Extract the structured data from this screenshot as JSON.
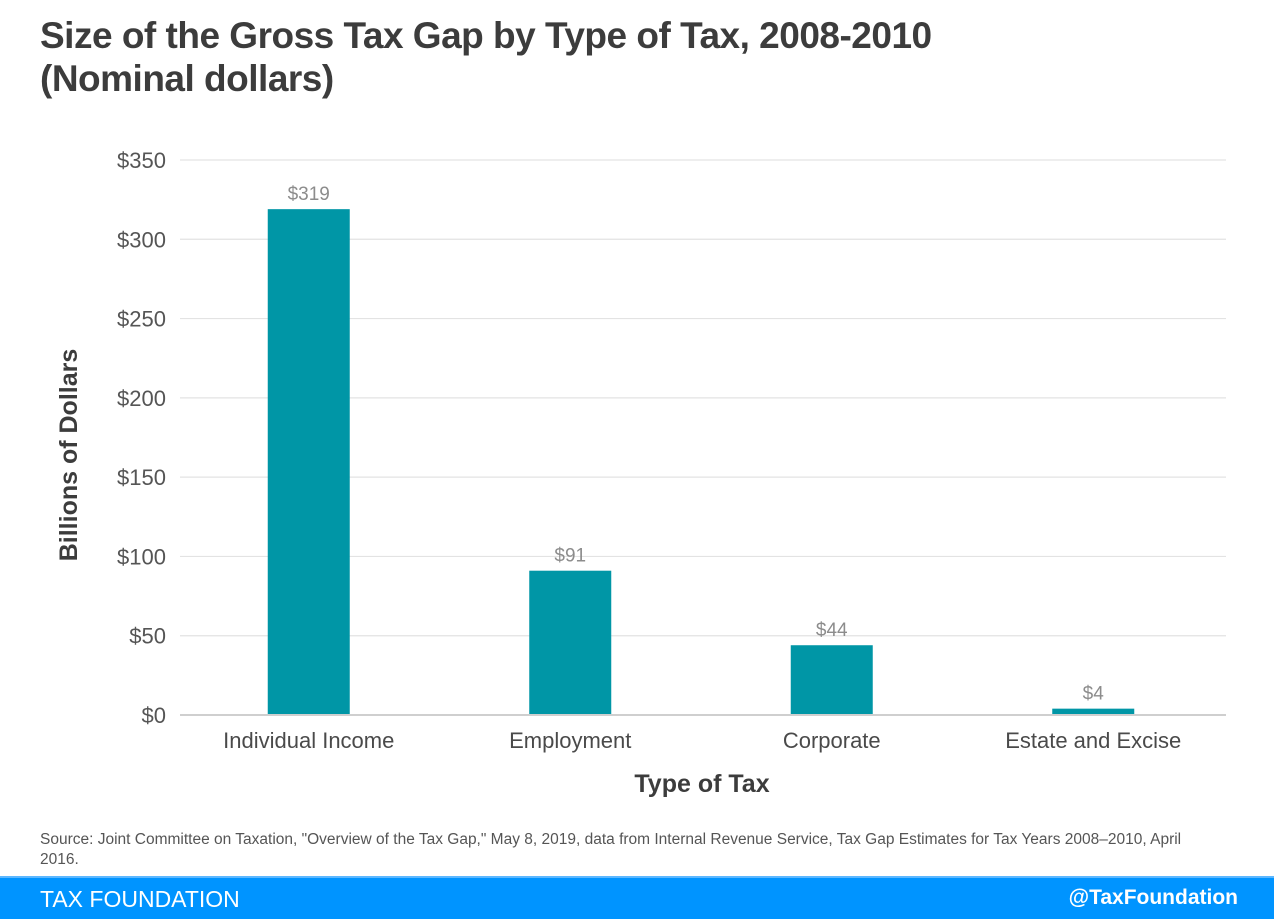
{
  "title_line1": "Size of the Gross Tax Gap by Type of Tax, 2008-2010",
  "title_line2": "(Nominal dollars)",
  "source": "Source: Joint Committee on Taxation, \"Overview of the Tax Gap,\" May 8, 2019, data from Internal Revenue Service, Tax Gap Estimates for Tax Years 2008–2010, April 2016.",
  "footer": {
    "brand": "TAX FOUNDATION",
    "handle": "@TaxFoundation"
  },
  "colors": {
    "bar": "#0096a6",
    "footer": "#0094ff"
  },
  "chart_data": {
    "type": "bar",
    "title": "Size of the Gross Tax Gap by Type of Tax, 2008-2010 (Nominal dollars)",
    "xlabel": "Type of Tax",
    "ylabel": "Billions of Dollars",
    "categories": [
      "Individual Income",
      "Employment",
      "Corporate",
      "Estate and Excise"
    ],
    "values": [
      319,
      91,
      44,
      4
    ],
    "data_labels": [
      "$319",
      "$91",
      "$44",
      "$4"
    ],
    "ylim": [
      0,
      350
    ],
    "yticks": [
      0,
      50,
      100,
      150,
      200,
      250,
      300,
      350
    ],
    "ytick_labels": [
      "$0",
      "$50",
      "$100",
      "$150",
      "$200",
      "$250",
      "$300",
      "$350"
    ],
    "grid": true,
    "legend": "none"
  }
}
